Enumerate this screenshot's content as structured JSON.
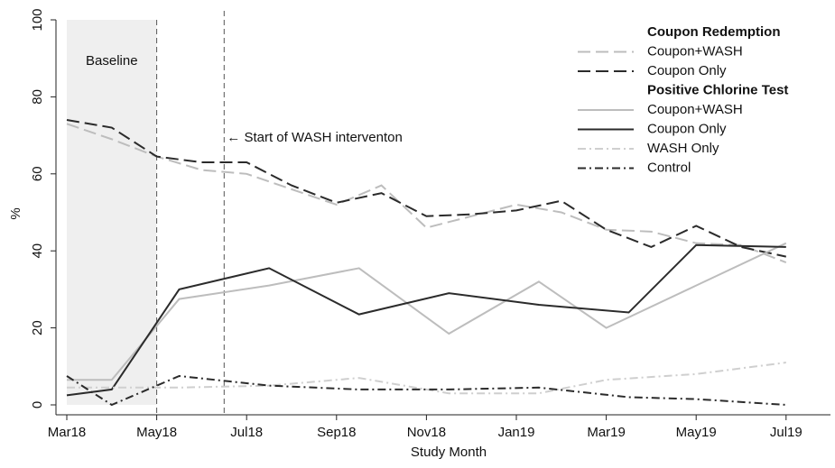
{
  "chart_data": {
    "type": "line",
    "x_label": "Study Month",
    "y_label": "%",
    "xlim": [
      0,
      16.9
    ],
    "ylim": [
      0,
      100
    ],
    "xticks": [
      {
        "value": 0,
        "label": "Mar18"
      },
      {
        "value": 2,
        "label": "May18"
      },
      {
        "value": 4,
        "label": "Jul18"
      },
      {
        "value": 6,
        "label": "Sep18"
      },
      {
        "value": 8,
        "label": "Nov18"
      },
      {
        "value": 10,
        "label": "Jan19"
      },
      {
        "value": 12,
        "label": "Mar19"
      },
      {
        "value": 14,
        "label": "May19"
      },
      {
        "value": 16,
        "label": "Jul19"
      }
    ],
    "yticks": [
      0,
      20,
      40,
      60,
      80,
      100
    ],
    "baseline": {
      "label": "Baseline",
      "x": [
        0,
        2
      ],
      "color": "#efefef"
    },
    "annotation": {
      "text": "← Start of WASH interventon",
      "x": 3.5
    },
    "legend_groups": [
      "Coupon Redemption",
      "Positive Chlorine Test"
    ],
    "series": [
      {
        "name": "Coupon+WASH",
        "group": 0,
        "color": "#bdbdbd",
        "dash": "14,6",
        "x": [
          0,
          1,
          2,
          3,
          4,
          5,
          6,
          7,
          8,
          9,
          10,
          11,
          12,
          13,
          14,
          15,
          16
        ],
        "values": [
          73,
          69,
          64.5,
          61,
          60,
          56,
          52,
          57,
          46,
          49,
          52,
          50,
          45.5,
          45,
          42,
          41.5,
          37
        ]
      },
      {
        "name": "Coupon Only",
        "group": 0,
        "color": "#2b2b2b",
        "dash": "14,6",
        "x": [
          0,
          1,
          2,
          3,
          4,
          5,
          6,
          7,
          8,
          9,
          10,
          11,
          12,
          13,
          14,
          15,
          16
        ],
        "values": [
          74,
          72,
          64.5,
          63,
          63,
          57,
          52.5,
          55,
          49,
          49.5,
          50.5,
          53,
          45.5,
          41,
          46.5,
          41,
          38.5
        ]
      },
      {
        "name": "Coupon+WASH",
        "group": 1,
        "color": "#bdbdbd",
        "dash": "none",
        "x": [
          0,
          1,
          2.5,
          4.5,
          6.5,
          8.5,
          10.5,
          12,
          14,
          16
        ],
        "values": [
          6.5,
          6.5,
          27.5,
          31,
          35.5,
          18.5,
          32,
          20,
          31,
          42
        ]
      },
      {
        "name": "Coupon Only",
        "group": 1,
        "color": "#2b2b2b",
        "dash": "none",
        "x": [
          0,
          1,
          2.5,
          4.5,
          6.5,
          8.5,
          10.5,
          12.5,
          14,
          16
        ],
        "values": [
          2.5,
          4,
          30,
          35.5,
          23.5,
          29,
          26,
          24,
          41.5,
          41
        ]
      },
      {
        "name": "WASH Only",
        "group": 1,
        "color": "#cfcfcf",
        "dash": "9,4,2,4",
        "x": [
          0,
          1,
          2.5,
          4.5,
          6.5,
          8.5,
          10.5,
          12,
          14,
          16
        ],
        "values": [
          4.5,
          4.5,
          4.5,
          5,
          7,
          3,
          3,
          6.5,
          8,
          11
        ]
      },
      {
        "name": "Control",
        "group": 1,
        "color": "#2b2b2b",
        "dash": "9,4,2,4",
        "x": [
          0,
          1,
          2.5,
          4.5,
          6.5,
          8.5,
          10.5,
          12.5,
          14,
          16
        ],
        "values": [
          7.5,
          0,
          7.5,
          5,
          4,
          4,
          4.5,
          2,
          1.5,
          0
        ]
      }
    ]
  }
}
